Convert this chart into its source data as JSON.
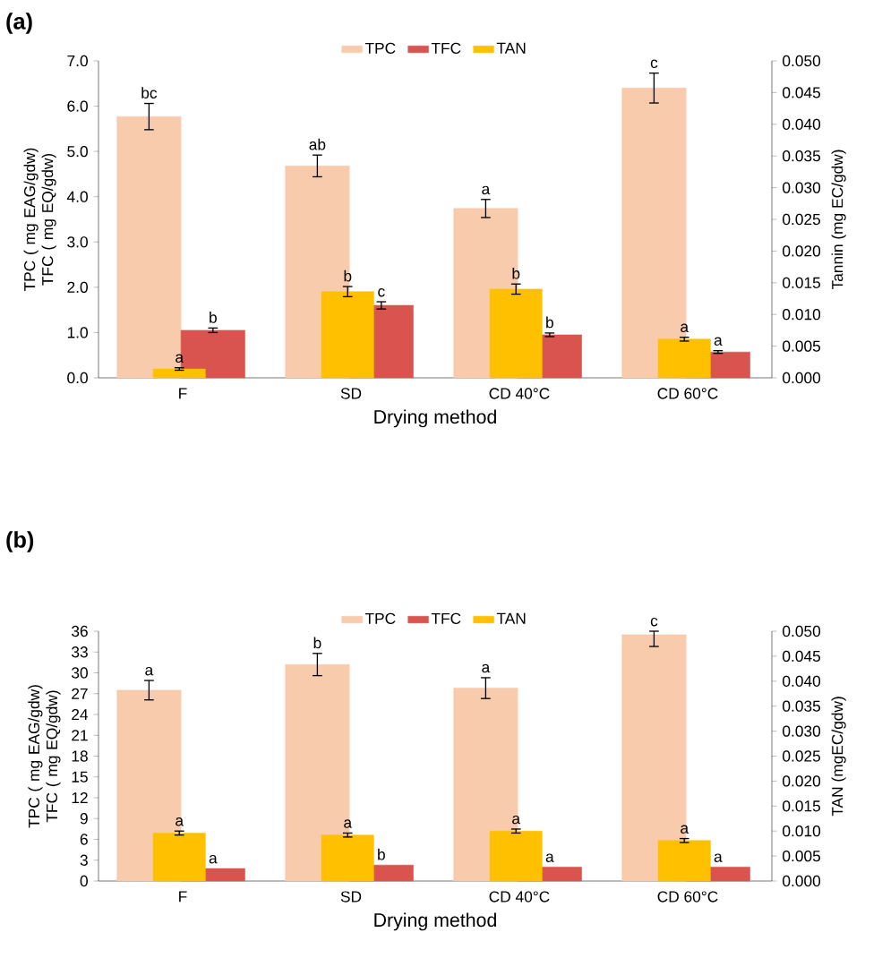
{
  "chart_data": [
    {
      "type": "bar",
      "title": "(a)",
      "xlabel": "Drying method",
      "ylabel": "TPC ( mg EAG/gdw) TFC ( mg EQ/gdw)",
      "y2label": "Tannin (mg EC/gdw)",
      "legend": "top",
      "categories": [
        "F",
        "SD",
        "CD 40°C",
        "CD 60°C"
      ],
      "series": [
        {
          "name": "TPC",
          "color": "#f8cbad",
          "values": [
            5.77,
            4.68,
            3.74,
            6.4
          ],
          "errors": [
            0.29,
            0.24,
            0.2,
            0.33
          ],
          "value_labels": [
            "bc",
            "ab",
            "a",
            "c"
          ]
        },
        {
          "name": "TFC",
          "color": "#d9534f",
          "values": [
            1.05,
            1.6,
            0.95,
            0.57
          ],
          "errors": [
            0.05,
            0.08,
            0.04,
            0.03
          ],
          "value_labels": [
            "b",
            "c",
            "b",
            "a"
          ]
        },
        {
          "name": "TAN",
          "color": "#ffc000",
          "axis": "y2",
          "values": [
            0.0014,
            0.0136,
            0.014,
            0.0061
          ],
          "errors": [
            0.0002,
            0.0008,
            0.0008,
            0.0003
          ],
          "value_labels": [
            "a",
            "b",
            "b",
            "a"
          ]
        }
      ],
      "ylim": [
        0,
        7
      ],
      "yticks": [
        {
          "value": 0,
          "label": "0.0"
        },
        {
          "value": 1,
          "label": "1.0"
        },
        {
          "value": 2,
          "label": "2.0"
        },
        {
          "value": 3,
          "label": "3.0"
        },
        {
          "value": 4,
          "label": "4.0"
        },
        {
          "value": 5,
          "label": "5.0"
        },
        {
          "value": 6,
          "label": "6.0"
        },
        {
          "value": 7,
          "label": "7.0"
        }
      ],
      "y2lim": [
        0,
        0.05
      ],
      "y2ticks": [
        {
          "value": 0,
          "label": "0.000"
        },
        {
          "value": 0.005,
          "label": "0.005"
        },
        {
          "value": 0.01,
          "label": "0.010"
        },
        {
          "value": 0.015,
          "label": "0.015"
        },
        {
          "value": 0.02,
          "label": "0.020"
        },
        {
          "value": 0.025,
          "label": "0.025"
        },
        {
          "value": 0.03,
          "label": "0.030"
        },
        {
          "value": 0.035,
          "label": "0.035"
        },
        {
          "value": 0.04,
          "label": "0.040"
        },
        {
          "value": 0.045,
          "label": "0.045"
        },
        {
          "value": 0.05,
          "label": "0.050"
        }
      ]
    },
    {
      "type": "bar",
      "title": "(b)",
      "xlabel": "Drying method",
      "ylabel": "TPC ( mg EAG/gdw) TFC ( mg EQ/gdw)",
      "y2label": "TAN (mgEC/gdw)",
      "legend": "top",
      "categories": [
        "F",
        "SD",
        "CD 40°C",
        "CD 60°C"
      ],
      "series": [
        {
          "name": "TPC",
          "color": "#f8cbad",
          "values": [
            27.5,
            31.2,
            27.8,
            35.5
          ],
          "errors": [
            1.4,
            1.6,
            1.5,
            [
              33.8,
              36
            ]
          ],
          "value_labels": [
            "a",
            "b",
            "a",
            "c"
          ]
        },
        {
          "name": "TFC",
          "color": "#d9534f",
          "values": [
            1.8,
            2.3,
            2.0,
            2.0
          ],
          "value_labels": [
            "a",
            "b",
            "a",
            "a"
          ]
        },
        {
          "name": "TAN",
          "color": "#ffc000",
          "axis": "y2",
          "values": [
            0.0096,
            0.0092,
            0.01,
            0.0081
          ],
          "errors": [
            0.0004,
            0.0004,
            0.0004,
            0.0004
          ],
          "value_labels": [
            "a",
            "a",
            "a",
            "a"
          ]
        }
      ],
      "ylim": [
        0,
        36
      ],
      "yticks": [
        0,
        3,
        6,
        9,
        12,
        15,
        18,
        21,
        24,
        27,
        30,
        33,
        36
      ],
      "y2lim": [
        0,
        0.05
      ],
      "y2ticks": [
        {
          "value": 0,
          "label": "0.000"
        },
        {
          "value": 0.005,
          "label": "0.005"
        },
        {
          "value": 0.01,
          "label": "0.010"
        },
        {
          "value": 0.015,
          "label": "0.015"
        },
        {
          "value": 0.02,
          "label": "0.020"
        },
        {
          "value": 0.025,
          "label": "0.025"
        },
        {
          "value": 0.03,
          "label": "0.030"
        },
        {
          "value": 0.035,
          "label": "0.035"
        },
        {
          "value": 0.04,
          "label": "0.040"
        },
        {
          "value": 0.045,
          "label": "0.045"
        },
        {
          "value": 0.05,
          "label": "0.050"
        }
      ]
    }
  ]
}
